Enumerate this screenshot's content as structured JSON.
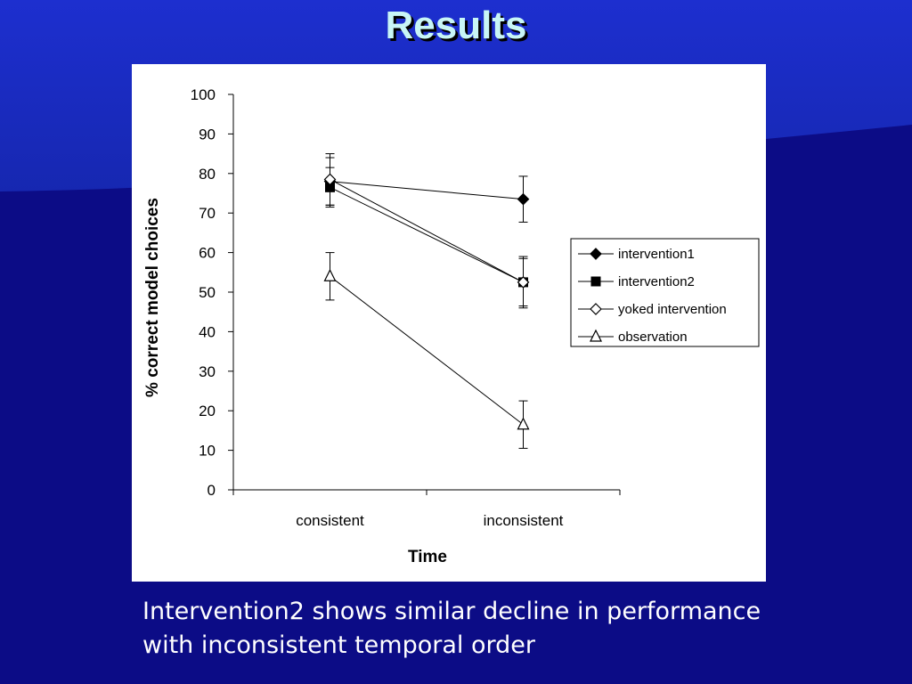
{
  "slide": {
    "title": "Results",
    "caption_lines": [
      "Intervention2 shows similar decline in performance",
      "with inconsistent temporal order"
    ]
  },
  "colors": {
    "background": "#0c0c86",
    "title": "#c8f6f6",
    "series": "#000000"
  },
  "chart_data": {
    "type": "line",
    "xlabel": "Time",
    "ylabel": "% correct model choices",
    "categories": [
      "consistent",
      "inconsistent"
    ],
    "ylim": [
      0,
      100
    ],
    "yticks": [
      0,
      10,
      20,
      30,
      40,
      50,
      60,
      70,
      80,
      90,
      100
    ],
    "legend_position": "right",
    "series": [
      {
        "name": "intervention1",
        "marker": "diamond-filled",
        "values": [
          78,
          73.5
        ],
        "errors": [
          6,
          5.8
        ]
      },
      {
        "name": "intervention2",
        "marker": "square-filled",
        "values": [
          76.5,
          52.5
        ],
        "errors": [
          5,
          6.5
        ]
      },
      {
        "name": "yoked intervention",
        "marker": "diamond-open",
        "values": [
          78.5,
          52.5
        ],
        "errors": [
          6.5,
          6
        ]
      },
      {
        "name": "observation",
        "marker": "triangle-open",
        "values": [
          54,
          16.5
        ],
        "errors": [
          6,
          6
        ]
      }
    ]
  }
}
